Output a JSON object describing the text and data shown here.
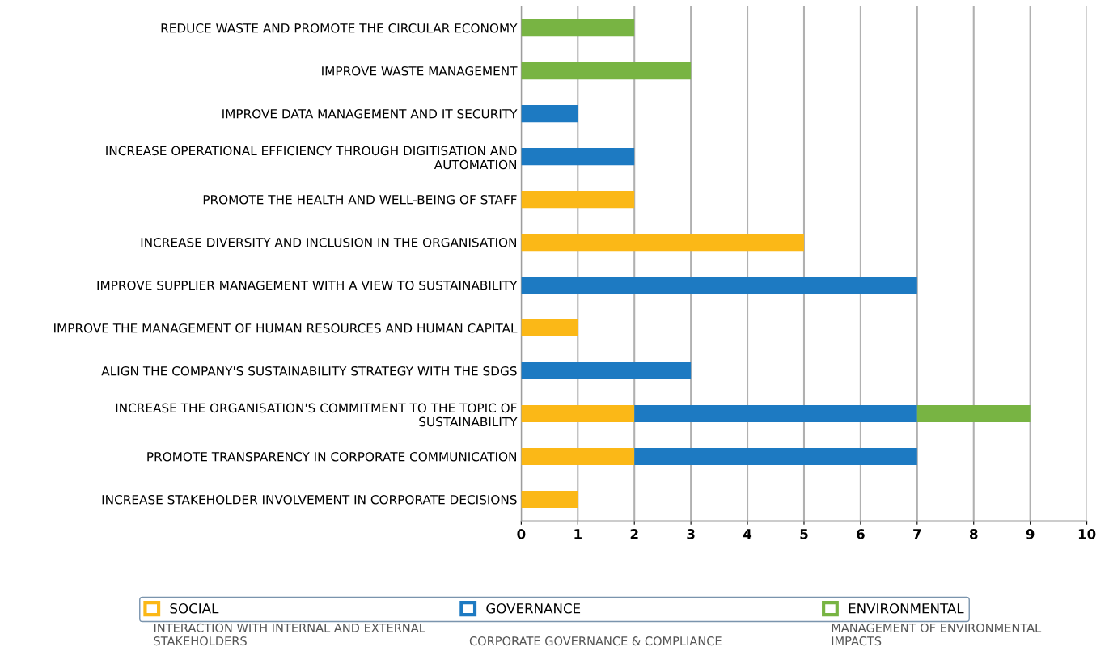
{
  "chart_data": {
    "type": "bar",
    "orientation": "horizontal",
    "stacked": true,
    "categories": [
      "REDUCE WASTE AND PROMOTE THE CIRCULAR ECONOMY",
      "IMPROVE WASTE MANAGEMENT",
      "IMPROVE DATA MANAGEMENT AND IT SECURITY",
      "INCREASE OPERATIONAL EFFICIENCY THROUGH DIGITISATION AND\nAUTOMATION",
      "PROMOTE THE HEALTH AND WELL-BEING OF STAFF",
      "INCREASE DIVERSITY AND INCLUSION IN THE ORGANISATION",
      "IMPROVE SUPPLIER MANAGEMENT WITH A VIEW TO SUSTAINABILITY",
      "IMPROVE THE MANAGEMENT OF HUMAN RESOURCES AND HUMAN CAPITAL",
      "ALIGN THE COMPANY'S SUSTAINABILITY STRATEGY WITH THE SDGS",
      "INCREASE THE ORGANISATION'S COMMITMENT TO THE TOPIC OF\nSUSTAINABILITY",
      "PROMOTE TRANSPARENCY IN CORPORATE COMMUNICATION",
      "INCREASE STAKEHOLDER INVOLVEMENT IN CORPORATE DECISIONS"
    ],
    "series": [
      {
        "name": "SOCIAL",
        "color": "#fbb817",
        "values": [
          null,
          null,
          null,
          null,
          2,
          5,
          null,
          1,
          null,
          2,
          2,
          1
        ]
      },
      {
        "name": "GOVERNANCE",
        "color": "#1d7ac2",
        "values": [
          null,
          null,
          1,
          2,
          null,
          null,
          7,
          null,
          3,
          5,
          5,
          null
        ]
      },
      {
        "name": "ENVIRONMENTAL",
        "color": "#78b443",
        "values": [
          2,
          3,
          null,
          null,
          null,
          null,
          null,
          null,
          null,
          2,
          null,
          null
        ]
      }
    ],
    "xlim": [
      0,
      10
    ],
    "xticks": [
      0,
      1,
      2,
      3,
      4,
      5,
      6,
      7,
      8,
      9,
      10
    ],
    "grid": "x",
    "legend": "bottom",
    "annotations": [
      "INTERACTION WITH INTERNAL AND EXTERNAL\nSTAKEHOLDERS",
      "CORPORATE GOVERNANCE & COMPLIANCE",
      "MANAGEMENT OF ENVIRONMENTAL\nIMPACTS"
    ]
  }
}
